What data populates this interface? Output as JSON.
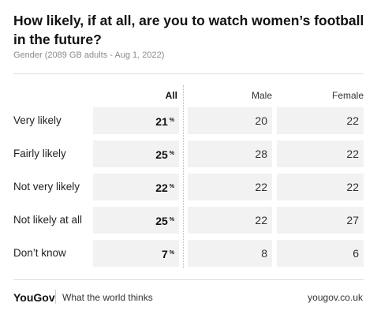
{
  "header": {
    "title": "How likely, if at all, are you to watch women’s football in the future?",
    "subtitle": "Gender (2089 GB adults - Aug 1, 2022)"
  },
  "chart_data": {
    "type": "table",
    "columns": [
      "All",
      "Male",
      "Female"
    ],
    "pct_symbol": "%",
    "rows": [
      {
        "label": "Very likely",
        "all": "21",
        "male": "20",
        "female": "22"
      },
      {
        "label": "Fairly likely",
        "all": "25",
        "male": "28",
        "female": "22"
      },
      {
        "label": "Not very likely",
        "all": "22",
        "male": "22",
        "female": "22"
      },
      {
        "label": "Not likely at all",
        "all": "25",
        "male": "22",
        "female": "27"
      },
      {
        "label": "Don’t know",
        "all": "7",
        "male": "8",
        "female": "6"
      }
    ]
  },
  "footer": {
    "brand": "YouGov",
    "tagline": "What the world thinks",
    "site": "yougov.co.uk"
  }
}
